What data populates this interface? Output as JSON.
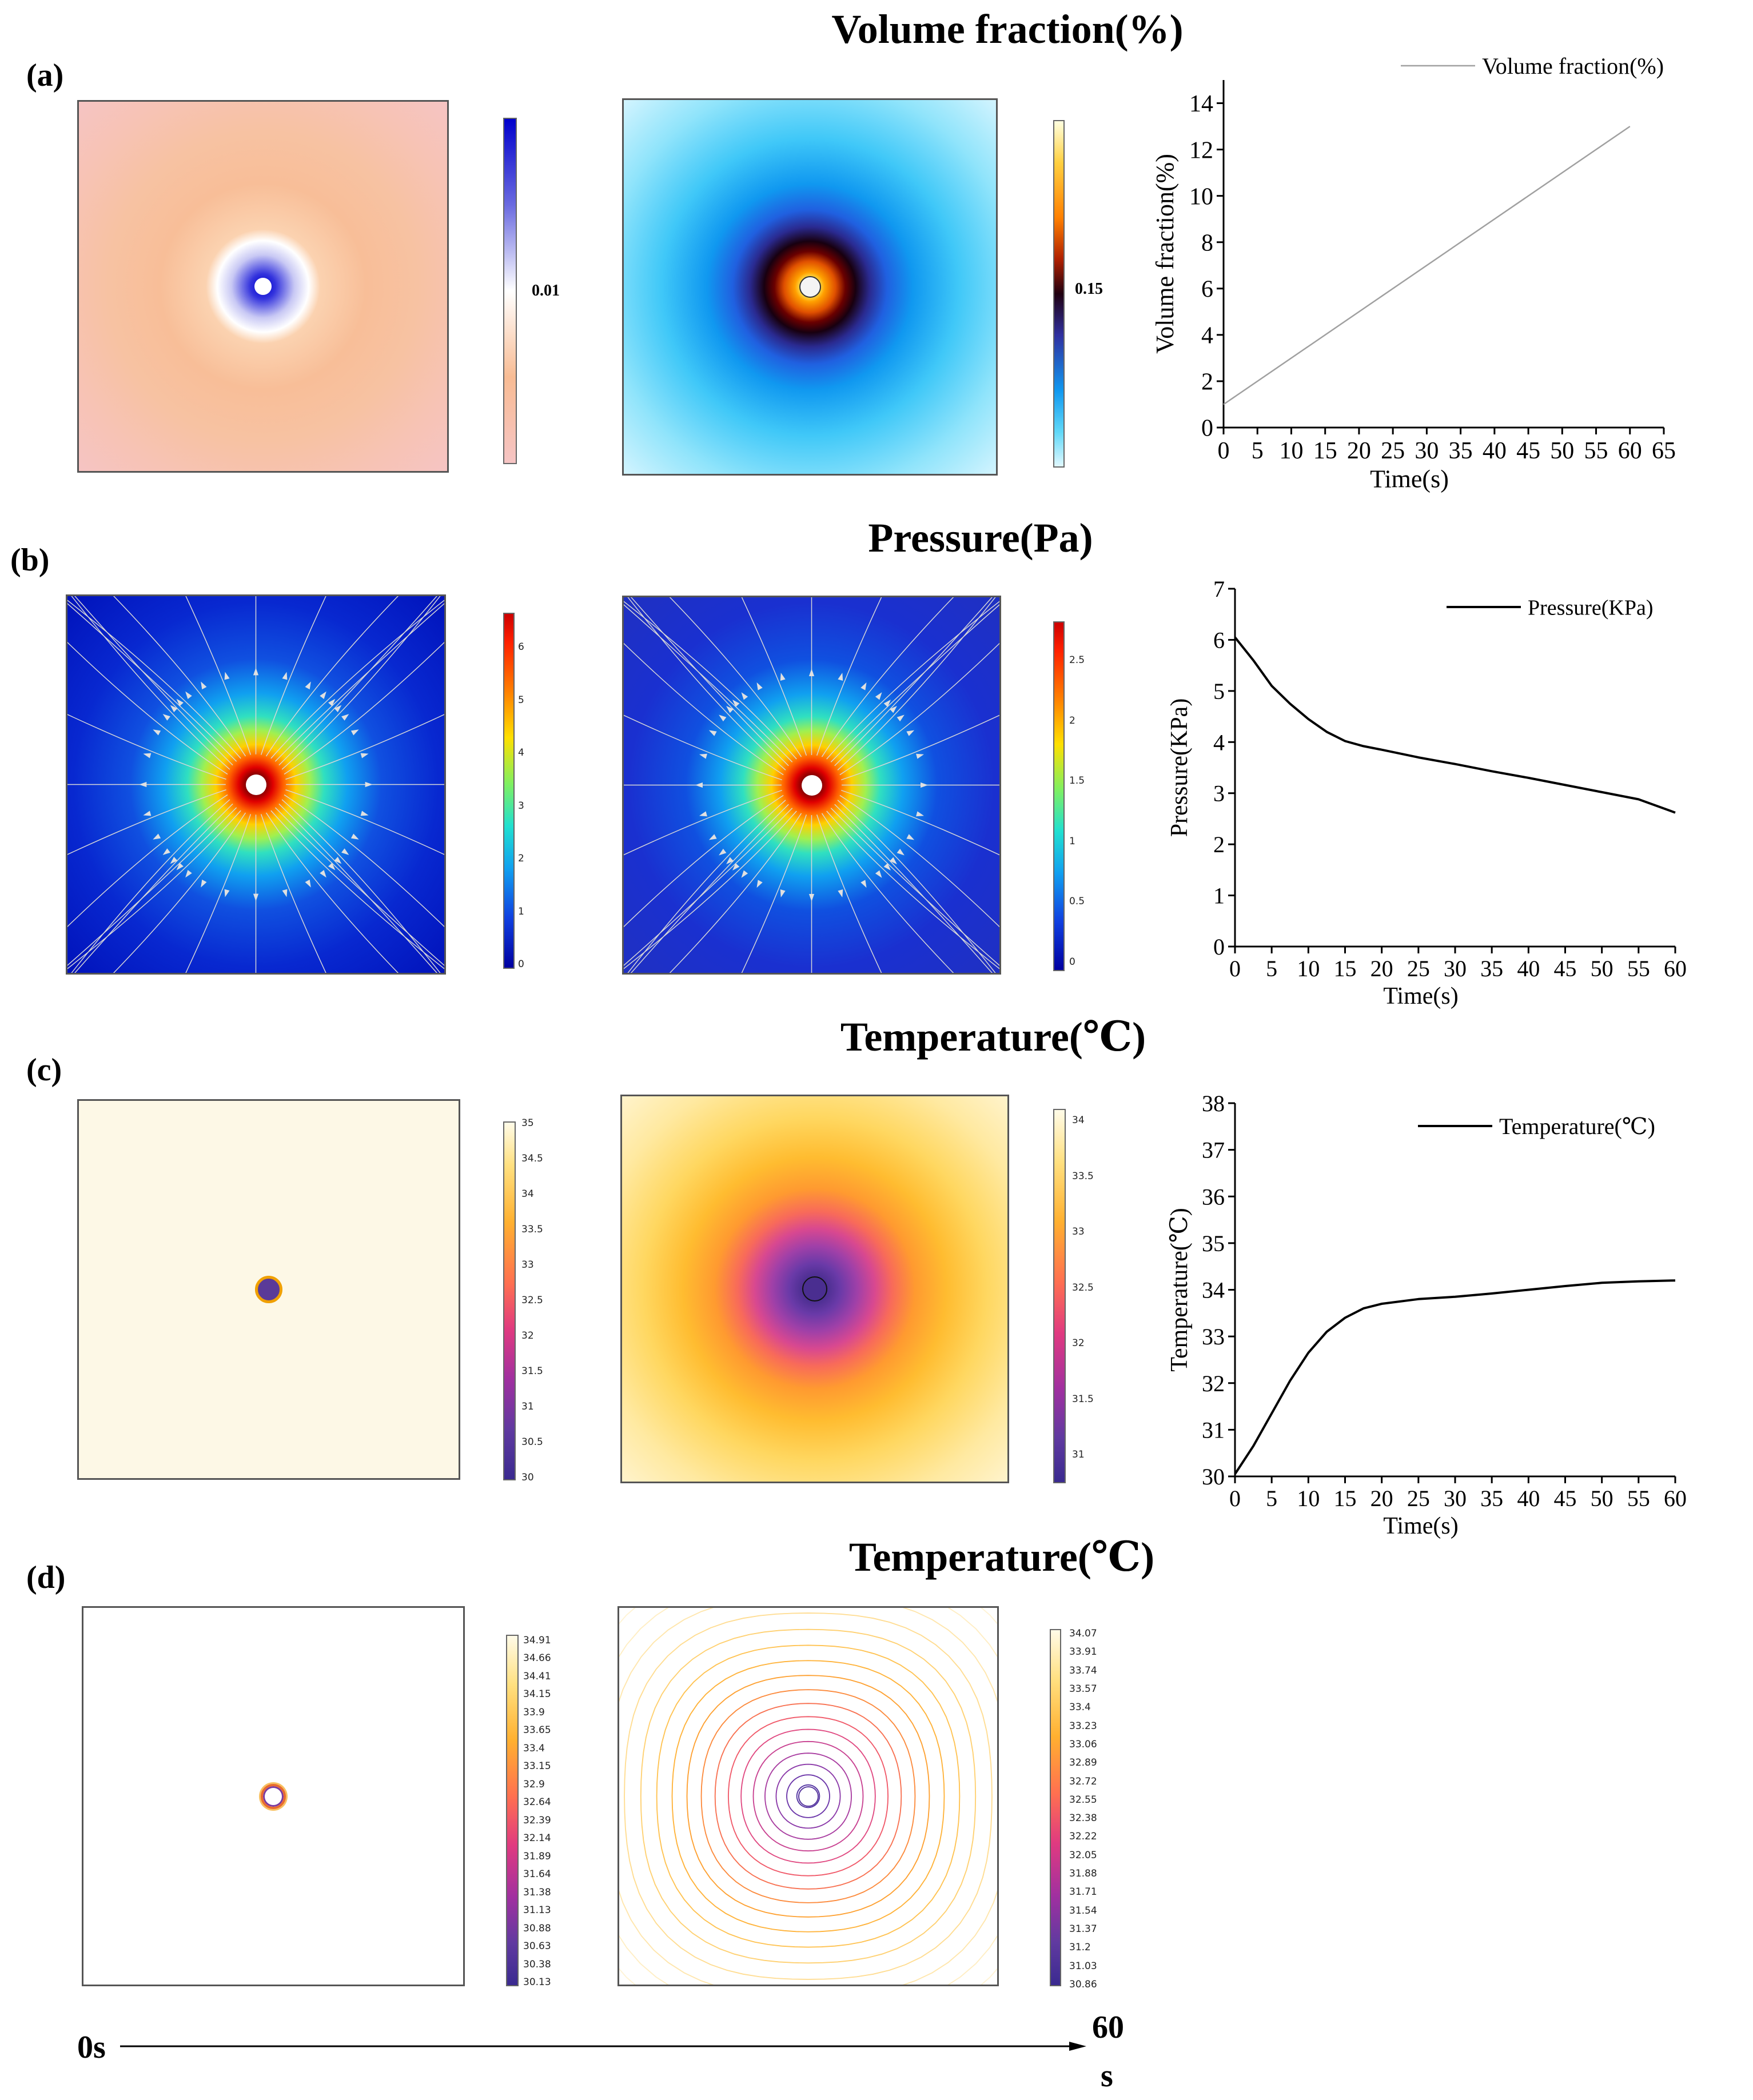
{
  "figure": {
    "labels": {
      "a": "(a)",
      "b": "(b)",
      "c": "(c)",
      "d": "(d)"
    },
    "titles": {
      "a": "Volume fraction(%)",
      "b": "Pressure(Pa)",
      "c": "Temperature(℃)",
      "d": "Temperature(℃)"
    },
    "colorbars": {
      "a1": {
        "label": "0.01"
      },
      "a2": {
        "label": "0.15"
      },
      "b1": {
        "ticks": [
          "6",
          "5",
          "4",
          "3",
          "2",
          "1",
          "0"
        ]
      },
      "b2": {
        "ticks": [
          "2.5",
          "2",
          "1.5",
          "1",
          "0.5",
          "0"
        ]
      },
      "c1": {
        "ticks": [
          "35",
          "34.5",
          "34",
          "33.5",
          "33",
          "32.5",
          "32",
          "31.5",
          "31",
          "30.5",
          "30"
        ]
      },
      "c2": {
        "ticks": [
          "34",
          "33.5",
          "33",
          "32.5",
          "32",
          "31.5",
          "31"
        ]
      },
      "d1": {
        "ticks": [
          "34.91",
          "34.66",
          "34.41",
          "34.15",
          "33.9",
          "33.65",
          "33.4",
          "33.15",
          "32.9",
          "32.64",
          "32.39",
          "32.14",
          "31.89",
          "31.64",
          "31.38",
          "31.13",
          "30.88",
          "30.63",
          "30.38",
          "30.13"
        ]
      },
      "d2": {
        "ticks": [
          "34.07",
          "33.91",
          "33.74",
          "33.57",
          "33.4",
          "33.23",
          "33.06",
          "32.89",
          "32.72",
          "32.55",
          "32.38",
          "32.22",
          "32.05",
          "31.88",
          "31.71",
          "31.54",
          "31.37",
          "31.2",
          "31.03",
          "30.86"
        ]
      }
    },
    "timeline": {
      "start": "0s",
      "end_line1": "60",
      "end_line2": "s"
    }
  },
  "chart_data": [
    {
      "id": "volume",
      "type": "line",
      "title": "",
      "xlabel": "Time(s)",
      "ylabel": "Volume fraction(%)",
      "xlim": [
        0,
        65
      ],
      "ylim": [
        0,
        15
      ],
      "xticks": [
        0,
        5,
        10,
        15,
        20,
        25,
        30,
        35,
        40,
        45,
        50,
        55,
        60,
        65
      ],
      "yticks": [
        0,
        2,
        4,
        6,
        8,
        10,
        12,
        14
      ],
      "legend": "top-right",
      "color": "#a0a0a0",
      "series": [
        {
          "name": "Volume fraction(%)",
          "x": [
            0,
            60
          ],
          "y": [
            1,
            13
          ]
        }
      ]
    },
    {
      "id": "pressure",
      "type": "line",
      "title": "",
      "xlabel": "Time(s)",
      "ylabel": "Pressure(KPa)",
      "xlim": [
        0,
        60
      ],
      "ylim": [
        0,
        7
      ],
      "xticks": [
        0,
        5,
        10,
        15,
        20,
        25,
        30,
        35,
        40,
        45,
        50,
        55,
        60
      ],
      "yticks": [
        0,
        1,
        2,
        3,
        4,
        5,
        6,
        7
      ],
      "legend": "top-right",
      "color": "#000000",
      "series": [
        {
          "name": "Pressure(KPa)",
          "x": [
            0,
            2.5,
            5,
            7.5,
            10,
            12.5,
            15,
            17.5,
            20,
            25,
            30,
            35,
            40,
            45,
            50,
            55,
            60
          ],
          "y": [
            6.05,
            5.6,
            5.1,
            4.75,
            4.45,
            4.2,
            4.02,
            3.92,
            3.85,
            3.7,
            3.57,
            3.43,
            3.3,
            3.16,
            3.02,
            2.88,
            2.62
          ]
        }
      ]
    },
    {
      "id": "temperature",
      "type": "line",
      "title": "",
      "xlabel": "Time(s)",
      "ylabel": "Temperature(℃)",
      "xlim": [
        0,
        60
      ],
      "ylim": [
        30,
        38
      ],
      "xticks": [
        0,
        5,
        10,
        15,
        20,
        25,
        30,
        35,
        40,
        45,
        50,
        55,
        60
      ],
      "yticks": [
        30,
        31,
        32,
        33,
        34,
        35,
        36,
        37,
        38
      ],
      "legend": "top-right",
      "color": "#000000",
      "series": [
        {
          "name": "Temperature(℃)",
          "x": [
            0,
            2.5,
            5,
            7.5,
            10,
            12.5,
            15,
            17.5,
            20,
            25,
            30,
            35,
            40,
            45,
            50,
            55,
            60
          ],
          "y": [
            30.05,
            30.65,
            31.35,
            32.05,
            32.65,
            33.1,
            33.4,
            33.6,
            33.7,
            33.8,
            33.85,
            33.92,
            34.0,
            34.08,
            34.15,
            34.18,
            34.2
          ]
        }
      ]
    }
  ]
}
